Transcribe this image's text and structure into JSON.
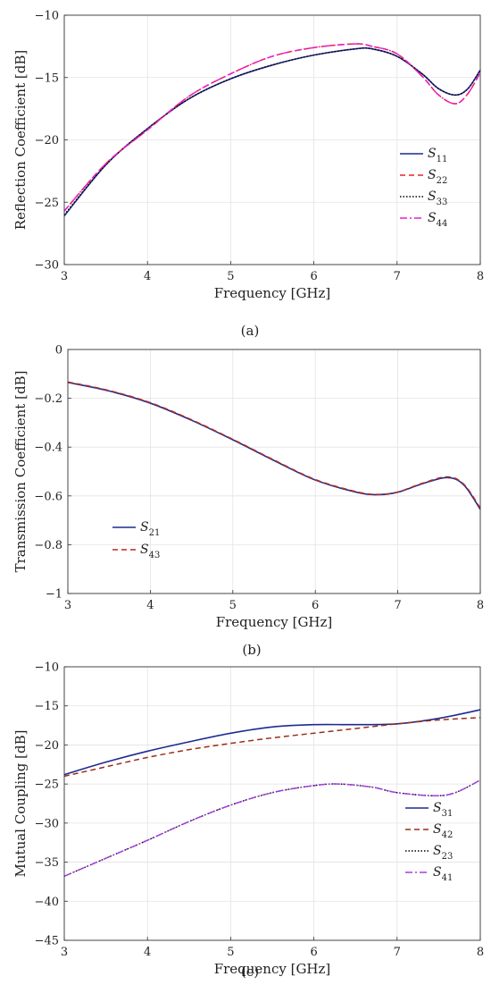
{
  "chart_data": [
    {
      "id": "a",
      "type": "line",
      "caption": "(a)",
      "xlabel": "Frequency [GHz]",
      "ylabel": "Reflection Coefficient [dB]",
      "xlim": [
        3,
        8
      ],
      "ylim": [
        -30,
        -10
      ],
      "xticks": [
        3,
        4,
        5,
        6,
        7,
        8
      ],
      "yticks": [
        -30,
        -25,
        -20,
        -15,
        -10
      ],
      "grid": true,
      "legend_position": "center-right",
      "series": [
        {
          "name": "S11",
          "sym": "S",
          "sub": "11",
          "color": "#1f2a8f",
          "dash": "",
          "width": 1.6,
          "x": [
            3,
            3.5,
            4,
            4.5,
            5,
            5.5,
            6,
            6.5,
            6.7,
            7,
            7.3,
            7.5,
            7.7,
            7.85,
            8
          ],
          "y": [
            -26.1,
            -22,
            -19.1,
            -16.7,
            -15.1,
            -14,
            -13.2,
            -12.7,
            -12.7,
            -13.3,
            -14.7,
            -15.9,
            -16.4,
            -15.9,
            -14.4
          ]
        },
        {
          "name": "S22",
          "sym": "S",
          "sub": "22",
          "color": "#e8232a",
          "dash": "6,4",
          "width": 1.5,
          "x": [
            3,
            3.5,
            4,
            4.5,
            5,
            5.5,
            6,
            6.5,
            6.7,
            7,
            7.3,
            7.5,
            7.7,
            7.85,
            8
          ],
          "y": [
            -25.7,
            -21.9,
            -19.2,
            -16.5,
            -14.7,
            -13.3,
            -12.6,
            -12.3,
            -12.5,
            -13.1,
            -14.9,
            -16.4,
            -17.1,
            -16.3,
            -14.6
          ]
        },
        {
          "name": "S33",
          "sym": "S",
          "sub": "33",
          "color": "#000000",
          "dash": "1.5,2",
          "width": 1.4,
          "x": [
            3,
            3.5,
            4,
            4.5,
            5,
            5.5,
            6,
            6.5,
            6.7,
            7,
            7.3,
            7.5,
            7.7,
            7.85,
            8
          ],
          "y": [
            -26.0,
            -22,
            -19.1,
            -16.7,
            -15.1,
            -14,
            -13.2,
            -12.7,
            -12.7,
            -13.3,
            -14.7,
            -15.9,
            -16.4,
            -15.9,
            -14.4
          ]
        },
        {
          "name": "S44",
          "sym": "S",
          "sub": "44",
          "color": "#e81fd2",
          "dash": "8,3,2,3",
          "width": 1.5,
          "x": [
            3,
            3.5,
            4,
            4.5,
            5,
            5.5,
            6,
            6.5,
            6.7,
            7,
            7.3,
            7.5,
            7.7,
            7.85,
            8
          ],
          "y": [
            -25.7,
            -21.9,
            -19.2,
            -16.5,
            -14.7,
            -13.3,
            -12.6,
            -12.3,
            -12.5,
            -13.1,
            -14.9,
            -16.4,
            -17.1,
            -16.3,
            -14.6
          ]
        }
      ]
    },
    {
      "id": "b",
      "type": "line",
      "caption": "(b)",
      "xlabel": "Frequency [GHz]",
      "ylabel": "Transmission Coefficient [dB]",
      "xlim": [
        3,
        8
      ],
      "ylim": [
        -1,
        0
      ],
      "xticks": [
        3,
        4,
        5,
        6,
        7,
        8
      ],
      "yticks": [
        -1,
        -0.8,
        -0.6,
        -0.4,
        -0.2,
        0
      ],
      "grid": true,
      "legend_position": "lower-left",
      "series": [
        {
          "name": "S21",
          "sym": "S",
          "sub": "21",
          "color": "#1f2a8f",
          "dash": "",
          "width": 1.6,
          "x": [
            3,
            3.5,
            4,
            4.5,
            5,
            5.5,
            6,
            6.5,
            6.75,
            7,
            7.3,
            7.6,
            7.8,
            8
          ],
          "y": [
            -0.135,
            -0.17,
            -0.22,
            -0.29,
            -0.37,
            -0.455,
            -0.535,
            -0.585,
            -0.595,
            -0.585,
            -0.55,
            -0.525,
            -0.555,
            -0.655
          ]
        },
        {
          "name": "S43",
          "sym": "S",
          "sub": "43",
          "color": "#b52a1f",
          "dash": "6,4",
          "width": 1.5,
          "x": [
            3,
            3.5,
            4,
            4.5,
            5,
            5.5,
            6,
            6.5,
            6.75,
            7,
            7.3,
            7.6,
            7.8,
            8
          ],
          "y": [
            -0.133,
            -0.168,
            -0.218,
            -0.288,
            -0.368,
            -0.453,
            -0.533,
            -0.583,
            -0.594,
            -0.584,
            -0.548,
            -0.522,
            -0.552,
            -0.65
          ]
        }
      ]
    },
    {
      "id": "c",
      "type": "line",
      "caption": "(c)",
      "xlabel": "Frequency [GHz]",
      "ylabel": "Mutual Coupling [dB]",
      "xlim": [
        3,
        8
      ],
      "ylim": [
        -45,
        -10
      ],
      "xticks": [
        3,
        4,
        5,
        6,
        7,
        8
      ],
      "yticks": [
        -45,
        -40,
        -35,
        -30,
        -25,
        -20,
        -15,
        -10
      ],
      "grid": true,
      "legend_position": "lower-right",
      "series": [
        {
          "name": "S31",
          "sym": "S",
          "sub": "31",
          "color": "#1f2a8f",
          "dash": "",
          "width": 1.6,
          "x": [
            3,
            3.5,
            4,
            4.5,
            5,
            5.5,
            6,
            6.5,
            7,
            7.5,
            8
          ],
          "y": [
            -23.8,
            -22.2,
            -20.8,
            -19.6,
            -18.5,
            -17.7,
            -17.4,
            -17.4,
            -17.3,
            -16.6,
            -15.5
          ]
        },
        {
          "name": "S42",
          "sym": "S",
          "sub": "42",
          "color": "#9a2e14",
          "dash": "6,4",
          "width": 1.5,
          "x": [
            3,
            3.5,
            4,
            4.5,
            5,
            5.5,
            6,
            6.5,
            7,
            7.5,
            8
          ],
          "y": [
            -24.0,
            -22.8,
            -21.6,
            -20.6,
            -19.8,
            -19.1,
            -18.5,
            -17.9,
            -17.3,
            -16.8,
            -16.5
          ]
        },
        {
          "name": "S23",
          "sym": "S",
          "sub": "23",
          "color": "#000000",
          "dash": "1.5,2",
          "width": 1.4,
          "x": [
            3,
            3.5,
            4,
            4.5,
            5,
            5.5,
            6,
            6.3,
            6.7,
            7,
            7.45,
            7.7,
            8
          ],
          "y": [
            -36.8,
            -34.5,
            -32.2,
            -29.8,
            -27.7,
            -26.1,
            -25.2,
            -25.0,
            -25.4,
            -26.1,
            -26.5,
            -26.1,
            -24.5
          ]
        },
        {
          "name": "S41",
          "sym": "S",
          "sub": "41",
          "color": "#a23ee0",
          "dash": "8,3,2,3",
          "width": 1.5,
          "x": [
            3,
            3.5,
            4,
            4.5,
            5,
            5.5,
            6,
            6.3,
            6.7,
            7,
            7.45,
            7.7,
            8
          ],
          "y": [
            -36.8,
            -34.5,
            -32.2,
            -29.8,
            -27.7,
            -26.1,
            -25.2,
            -25.0,
            -25.4,
            -26.1,
            -26.5,
            -26.1,
            -24.5
          ]
        }
      ]
    }
  ]
}
